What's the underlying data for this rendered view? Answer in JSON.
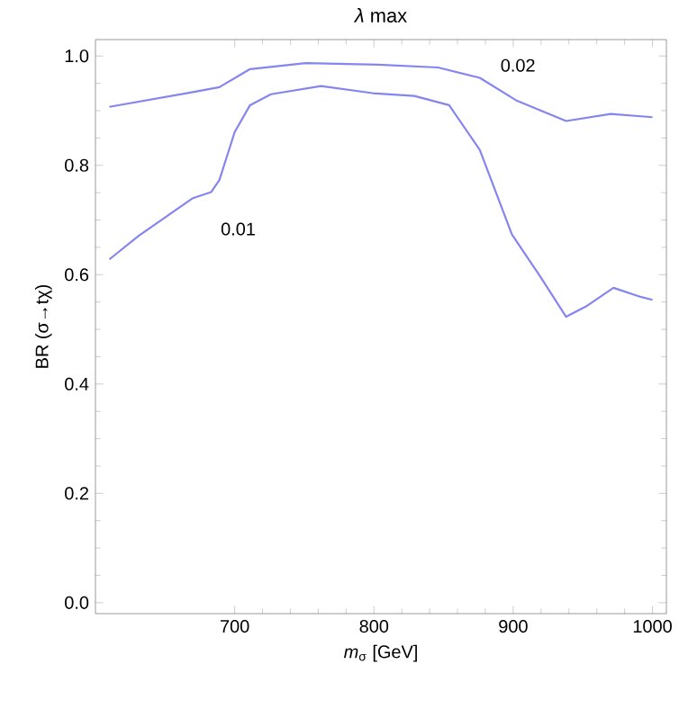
{
  "chart_data": {
    "type": "line",
    "title": "*λ* max",
    "xlabel": "*m*$_{σ}$ [GeV]",
    "ylabel": "BR (σ→tχ)",
    "xlim": [
      600,
      1010
    ],
    "ylim": [
      -0.02,
      1.03
    ],
    "xticks": [
      700,
      800,
      900,
      1000
    ],
    "yticks": [
      {
        "value": 0,
        "label": "0.0"
      },
      {
        "value": 0.2,
        "label": "0.2"
      },
      {
        "value": 0.4,
        "label": "0.4"
      },
      {
        "value": 0.6,
        "label": "0.6"
      },
      {
        "value": 0.8,
        "label": "0.8"
      },
      {
        "value": 1,
        "label": "1.0"
      }
    ],
    "grid": false,
    "marker": "none",
    "line_style": "solid",
    "series": [
      {
        "name": "0.01",
        "color": "#8585f0",
        "x": [
          610,
          631,
          670,
          683,
          689,
          700,
          711,
          726,
          762,
          799,
          829,
          854,
          876,
          899,
          919,
          938,
          953,
          972,
          992,
          1000
        ],
        "values": [
          0.628,
          0.671,
          0.74,
          0.751,
          0.773,
          0.861,
          0.91,
          0.93,
          0.945,
          0.932,
          0.927,
          0.91,
          0.828,
          0.674,
          0.598,
          0.523,
          0.543,
          0.576,
          0.559,
          0.554
        ]
      },
      {
        "name": "0.02",
        "color": "#8585f0",
        "x": [
          610,
          670,
          689,
          711,
          751,
          803,
          846,
          876,
          902,
          938,
          970,
          1000
        ],
        "values": [
          0.907,
          0.934,
          0.943,
          0.976,
          0.987,
          0.984,
          0.979,
          0.96,
          0.919,
          0.881,
          0.894,
          0.888
        ]
      }
    ]
  }
}
